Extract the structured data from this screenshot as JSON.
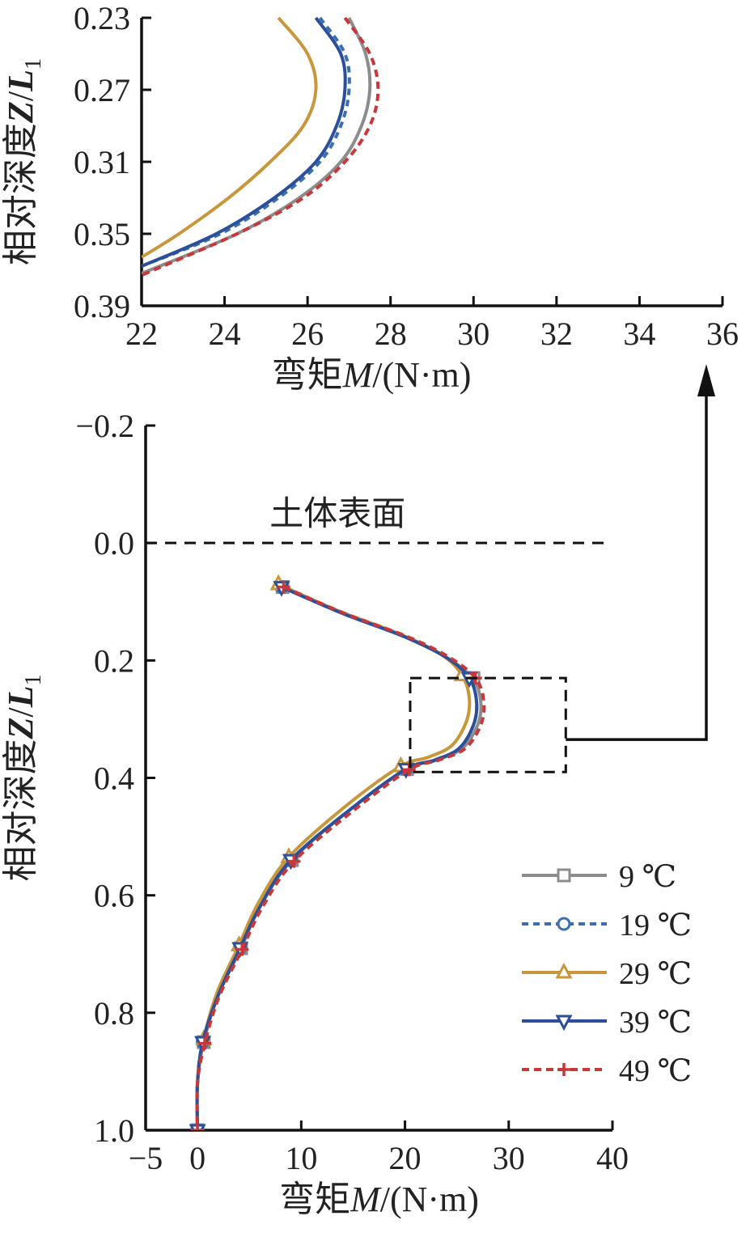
{
  "chart_data": [
    {
      "id": "inset",
      "type": "line",
      "xlabel": "弯矩M/(N·m)",
      "ylabel": "相对深度Z/L1",
      "xlim": [
        22,
        36
      ],
      "ylim": [
        0.23,
        0.39
      ],
      "y_inverted": true,
      "xticks": [
        "22",
        "24",
        "26",
        "28",
        "30",
        "32",
        "34",
        "36"
      ],
      "xtick_values": [
        22,
        24,
        26,
        28,
        30,
        32,
        34,
        36
      ],
      "yticks": [
        "0.23",
        "0.27",
        "0.31",
        "0.35",
        "0.39"
      ],
      "ytick_values": [
        0.23,
        0.27,
        0.31,
        0.35,
        0.39
      ],
      "series": [
        {
          "name": "9 ℃",
          "color": "#8c8c8c",
          "dash": "",
          "x": [
            27.0,
            27.4,
            27.5,
            27.3,
            26.8,
            25.8,
            24.3,
            22.0
          ],
          "y": [
            0.23,
            0.25,
            0.27,
            0.29,
            0.31,
            0.33,
            0.35,
            0.372
          ]
        },
        {
          "name": "19 ℃",
          "color": "#3a6fb0",
          "dash": "8,6",
          "x": [
            26.3,
            26.9,
            27.0,
            26.8,
            26.3,
            25.3,
            23.9,
            22.0
          ],
          "y": [
            0.23,
            0.25,
            0.27,
            0.29,
            0.31,
            0.33,
            0.35,
            0.368
          ]
        },
        {
          "name": "29 ℃",
          "color": "#c9973b",
          "dash": "",
          "x": [
            25.3,
            26.0,
            26.2,
            25.9,
            25.1,
            24.1,
            22.9,
            22.0
          ],
          "y": [
            0.23,
            0.25,
            0.27,
            0.29,
            0.31,
            0.33,
            0.35,
            0.363
          ]
        },
        {
          "name": "39 ℃",
          "color": "#2c4f9a",
          "dash": "",
          "x": [
            26.2,
            26.8,
            26.9,
            26.7,
            26.2,
            25.2,
            23.8,
            22.0
          ],
          "y": [
            0.23,
            0.25,
            0.27,
            0.29,
            0.31,
            0.33,
            0.35,
            0.368
          ]
        },
        {
          "name": "49 ℃",
          "color": "#c8383a",
          "dash": "9,6",
          "x": [
            26.9,
            27.5,
            27.7,
            27.5,
            26.9,
            25.9,
            24.3,
            22.0
          ],
          "y": [
            0.23,
            0.25,
            0.27,
            0.29,
            0.31,
            0.33,
            0.35,
            0.373
          ]
        }
      ]
    },
    {
      "id": "main",
      "type": "line",
      "xlabel": "弯矩M/(N·m)",
      "ylabel": "相对深度Z/L1",
      "xlim": [
        -5,
        40
      ],
      "ylim": [
        -0.2,
        1.0
      ],
      "y_inverted": true,
      "xticks": [
        "−5",
        "0",
        "10",
        "20",
        "30",
        "40"
      ],
      "xtick_values": [
        -5,
        0,
        10,
        20,
        30,
        40
      ],
      "yticks": [
        "−0.2",
        "0.0",
        "0.2",
        "0.4",
        "0.6",
        "0.8",
        "1.0"
      ],
      "ytick_values": [
        -0.2,
        0.0,
        0.2,
        0.4,
        0.6,
        0.8,
        1.0
      ],
      "surface_label": "土体表面",
      "surface_depth": 0.0,
      "zoom_box": {
        "x": [
          20.5,
          35.5
        ],
        "y": [
          0.23,
          0.39
        ]
      },
      "legend_position": "bottom-right",
      "series": [
        {
          "name": "9 ℃",
          "color": "#8c8c8c",
          "dash": "",
          "marker": "square",
          "x": [
            8.2,
            14,
            20,
            24,
            26.5,
            27.3,
            27.0,
            25.5,
            23,
            20.2,
            15,
            9.1,
            6,
            4.2,
            2,
            0.6,
            0,
            0
          ],
          "y": [
            0.075,
            0.12,
            0.16,
            0.195,
            0.23,
            0.27,
            0.31,
            0.35,
            0.37,
            0.385,
            0.45,
            0.54,
            0.62,
            0.69,
            0.77,
            0.85,
            0.92,
            1.0
          ],
          "markers_x": [
            8.2,
            26.6,
            20.2,
            9.1,
            4.2,
            0.6,
            0
          ],
          "markers_y": [
            0.075,
            0.23,
            0.385,
            0.54,
            0.69,
            0.85,
            1.0
          ]
        },
        {
          "name": "19 ℃",
          "color": "#3a6fb0",
          "dash": "8,6",
          "marker": "circle",
          "x": [
            8.1,
            14,
            20,
            24,
            26.2,
            26.9,
            26.6,
            25.2,
            22.8,
            20.1,
            15,
            9.0,
            6,
            4.1,
            2,
            0.5,
            0,
            0
          ],
          "y": [
            0.075,
            0.12,
            0.16,
            0.195,
            0.23,
            0.27,
            0.31,
            0.35,
            0.37,
            0.385,
            0.45,
            0.54,
            0.62,
            0.69,
            0.77,
            0.85,
            0.92,
            1.0
          ],
          "markers_x": [
            8.1,
            26.2,
            20.1,
            9.0,
            4.1,
            0.5,
            0
          ],
          "markers_y": [
            0.075,
            0.23,
            0.385,
            0.54,
            0.69,
            0.85,
            1.0
          ]
        },
        {
          "name": "29 ℃",
          "color": "#c9973b",
          "dash": "",
          "marker": "triangle-up",
          "x": [
            7.8,
            13.5,
            19.5,
            23.5,
            25.5,
            26.2,
            25.9,
            24.5,
            22.2,
            19.6,
            14.5,
            8.8,
            5.8,
            4.0,
            1.9,
            0.6,
            0,
            0
          ],
          "y": [
            0.07,
            0.115,
            0.155,
            0.19,
            0.225,
            0.265,
            0.305,
            0.345,
            0.365,
            0.38,
            0.445,
            0.535,
            0.615,
            0.685,
            0.765,
            0.845,
            0.92,
            1.0
          ],
          "markers_x": [
            7.8,
            25.5,
            19.6,
            8.8,
            4.0,
            0.6,
            0
          ],
          "markers_y": [
            0.07,
            0.225,
            0.38,
            0.535,
            0.685,
            0.845,
            1.0
          ]
        },
        {
          "name": "39 ℃",
          "color": "#2c4f9a",
          "dash": "",
          "marker": "triangle-down",
          "x": [
            8.1,
            14,
            20,
            24,
            26.2,
            26.9,
            26.6,
            25.2,
            22.8,
            20.1,
            15,
            9.0,
            6,
            4.1,
            2,
            0.5,
            0,
            0
          ],
          "y": [
            0.075,
            0.12,
            0.16,
            0.195,
            0.23,
            0.27,
            0.31,
            0.35,
            0.37,
            0.385,
            0.45,
            0.54,
            0.62,
            0.69,
            0.77,
            0.85,
            0.92,
            1.0
          ],
          "markers_x": [
            8.1,
            26.2,
            20.1,
            9.0,
            4.1,
            0.5,
            0
          ],
          "markers_y": [
            0.075,
            0.23,
            0.385,
            0.54,
            0.69,
            0.85,
            1.0
          ]
        },
        {
          "name": "49 ℃",
          "color": "#c8383a",
          "dash": "9,6",
          "marker": "plus",
          "x": [
            8.3,
            14.2,
            20.3,
            24.3,
            26.8,
            27.6,
            27.3,
            25.8,
            23.2,
            20.4,
            15.3,
            9.3,
            6.2,
            4.3,
            2.1,
            0.7,
            0,
            0
          ],
          "y": [
            0.075,
            0.12,
            0.16,
            0.195,
            0.23,
            0.27,
            0.31,
            0.35,
            0.37,
            0.386,
            0.452,
            0.542,
            0.622,
            0.692,
            0.772,
            0.852,
            0.92,
            1.0
          ],
          "markers_x": [
            8.3,
            26.8,
            20.4,
            9.3,
            4.3,
            0.7,
            0
          ],
          "markers_y": [
            0.075,
            0.23,
            0.386,
            0.542,
            0.692,
            0.852,
            1.0
          ]
        }
      ]
    }
  ]
}
